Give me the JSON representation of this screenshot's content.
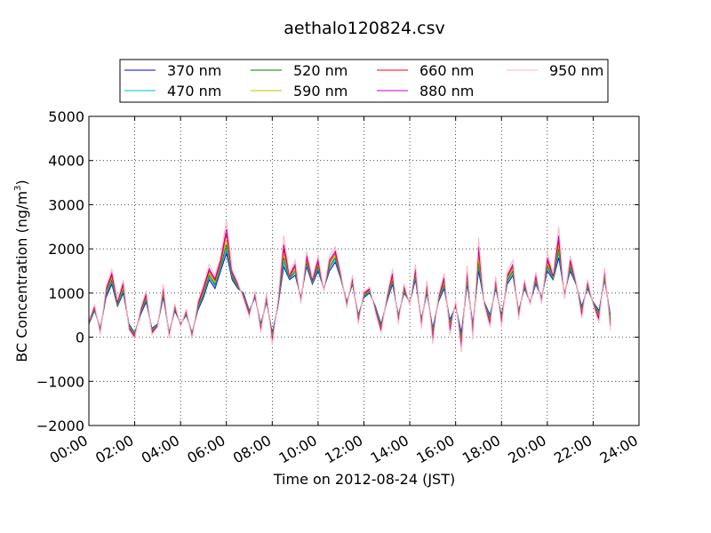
{
  "chart_data": {
    "type": "line",
    "title": "aethalo120824.csv",
    "xlabel": "Time on 2012-08-24 (JST)",
    "ylabel_prefix": "BC Concentration (ng/m",
    "ylabel_sup": "3",
    "ylabel_suffix": ")",
    "xlim": [
      0,
      24
    ],
    "ylim": [
      -2000,
      5000
    ],
    "x_tick_values": [
      0,
      2,
      4,
      6,
      8,
      10,
      12,
      14,
      16,
      18,
      20,
      22,
      24
    ],
    "x_tick_labels": [
      "00:00",
      "02:00",
      "04:00",
      "06:00",
      "08:00",
      "10:00",
      "12:00",
      "14:00",
      "16:00",
      "18:00",
      "20:00",
      "22:00",
      "24:00"
    ],
    "y_tick_values": [
      -2000,
      -1000,
      0,
      1000,
      2000,
      3000,
      4000,
      5000
    ],
    "y_tick_labels": [
      "−2000",
      "−1000",
      "0",
      "1000",
      "2000",
      "3000",
      "4000",
      "5000"
    ],
    "grid": true,
    "legend_position": "top",
    "x": [
      0.0,
      0.25,
      0.5,
      0.75,
      1.0,
      1.25,
      1.5,
      1.75,
      2.0,
      2.25,
      2.5,
      2.75,
      3.0,
      3.25,
      3.5,
      3.75,
      4.0,
      4.25,
      4.5,
      4.75,
      5.0,
      5.25,
      5.5,
      5.75,
      6.0,
      6.25,
      6.5,
      6.75,
      7.0,
      7.25,
      7.5,
      7.75,
      8.0,
      8.25,
      8.5,
      8.75,
      9.0,
      9.25,
      9.5,
      9.75,
      10.0,
      10.25,
      10.5,
      10.75,
      11.0,
      11.25,
      11.5,
      11.75,
      12.0,
      12.25,
      12.5,
      12.75,
      13.0,
      13.25,
      13.5,
      13.75,
      14.0,
      14.25,
      14.5,
      14.75,
      15.0,
      15.25,
      15.5,
      15.75,
      16.0,
      16.25,
      16.5,
      16.75,
      17.0,
      17.25,
      17.5,
      17.75,
      18.0,
      18.25,
      18.5,
      18.75,
      19.0,
      19.25,
      19.5,
      19.75,
      20.0,
      20.25,
      20.5,
      20.75,
      21.0,
      21.25,
      21.5,
      21.75,
      22.0,
      22.25,
      22.5,
      22.75
    ],
    "series": [
      {
        "name": "370 nm",
        "color": "#0000ff",
        "values": [
          300,
          600,
          200,
          900,
          1200,
          700,
          1000,
          300,
          100,
          500,
          800,
          200,
          300,
          900,
          100,
          600,
          300,
          500,
          100,
          600,
          900,
          1300,
          1100,
          1500,
          1900,
          1300,
          1100,
          1000,
          600,
          900,
          300,
          800,
          100,
          700,
          1600,
          1300,
          1400,
          900,
          1600,
          1200,
          1500,
          1100,
          1500,
          1700,
          1300,
          800,
          1200,
          500,
          900,
          1000,
          700,
          300,
          800,
          1200,
          500,
          1000,
          800,
          1300,
          400,
          1000,
          200,
          800,
          1100,
          400,
          700,
          100,
          1200,
          300,
          1500,
          800,
          500,
          1100,
          500,
          1200,
          1400,
          600,
          1100,
          800,
          1200,
          900,
          1500,
          1300,
          1800,
          1000,
          1500,
          1200,
          700,
          1100,
          800,
          600,
          1300,
          500
        ]
      },
      {
        "name": "470 nm",
        "color": "#00bfbf",
        "values": [
          320,
          620,
          180,
          950,
          1250,
          720,
          1050,
          280,
          90,
          520,
          850,
          180,
          290,
          950,
          90,
          640,
          290,
          520,
          80,
          630,
          950,
          1350,
          1150,
          1550,
          2000,
          1350,
          1120,
          980,
          580,
          930,
          270,
          830,
          60,
          720,
          1700,
          1320,
          1450,
          880,
          1650,
          1220,
          1550,
          1100,
          1550,
          1750,
          1320,
          780,
          1230,
          470,
          920,
          1020,
          680,
          270,
          820,
          1250,
          470,
          1030,
          790,
          1350,
          370,
          1040,
          150,
          820,
          1150,
          350,
          720,
          20,
          1260,
          250,
          1600,
          790,
          460,
          1140,
          460,
          1240,
          1450,
          570,
          1130,
          790,
          1240,
          880,
          1560,
          1320,
          1900,
          980,
          1550,
          1210,
          660,
          1130,
          790,
          560,
          1340,
          450
        ]
      },
      {
        "name": "520 nm",
        "color": "#008000",
        "values": [
          330,
          640,
          160,
          980,
          1300,
          740,
          1090,
          260,
          70,
          540,
          880,
          160,
          280,
          990,
          70,
          660,
          280,
          540,
          60,
          660,
          990,
          1400,
          1190,
          1600,
          2100,
          1380,
          1140,
          960,
          560,
          950,
          240,
          860,
          20,
          740,
          1800,
          1340,
          1500,
          860,
          1700,
          1240,
          1600,
          1090,
          1600,
          1800,
          1340,
          760,
          1260,
          440,
          940,
          1040,
          660,
          240,
          840,
          1300,
          440,
          1060,
          780,
          1400,
          340,
          1080,
          100,
          840,
          1200,
          300,
          740,
          -40,
          1320,
          200,
          1700,
          780,
          420,
          1180,
          420,
          1280,
          1500,
          540,
          1160,
          780,
          1280,
          860,
          1620,
          1340,
          2000,
          960,
          1600,
          1220,
          620,
          1160,
          780,
          520,
          1380,
          400
        ]
      },
      {
        "name": "590 nm",
        "color": "#bfbf00",
        "values": [
          340,
          660,
          140,
          1010,
          1350,
          760,
          1130,
          240,
          50,
          560,
          910,
          140,
          270,
          1030,
          50,
          680,
          270,
          560,
          40,
          690,
          1030,
          1450,
          1230,
          1650,
          2200,
          1410,
          1160,
          940,
          540,
          970,
          210,
          890,
          -20,
          760,
          1900,
          1360,
          1550,
          840,
          1750,
          1260,
          1650,
          1080,
          1650,
          1850,
          1360,
          740,
          1290,
          410,
          960,
          1060,
          640,
          210,
          860,
          1350,
          410,
          1090,
          770,
          1450,
          310,
          1120,
          50,
          860,
          1250,
          250,
          760,
          -100,
          1380,
          150,
          1800,
          770,
          380,
          1220,
          380,
          1320,
          1550,
          510,
          1190,
          770,
          1320,
          840,
          1680,
          1360,
          2100,
          940,
          1650,
          1230,
          580,
          1190,
          770,
          480,
          1420,
          350
        ]
      },
      {
        "name": "660 nm",
        "color": "#ff0000",
        "values": [
          350,
          680,
          120,
          1050,
          1400,
          780,
          1180,
          220,
          30,
          580,
          950,
          120,
          260,
          1080,
          30,
          700,
          260,
          580,
          20,
          720,
          1080,
          1500,
          1280,
          1700,
          2350,
          1440,
          1180,
          920,
          520,
          990,
          180,
          920,
          -60,
          780,
          2000,
          1380,
          1600,
          820,
          1800,
          1280,
          1700,
          1070,
          1700,
          1900,
          1380,
          720,
          1320,
          380,
          980,
          1080,
          620,
          180,
          880,
          1400,
          380,
          1120,
          760,
          1500,
          280,
          1160,
          0,
          880,
          1300,
          200,
          780,
          -160,
          1440,
          100,
          1950,
          760,
          340,
          1260,
          340,
          1360,
          1600,
          480,
          1220,
          760,
          1360,
          820,
          1740,
          1380,
          2200,
          920,
          1700,
          1240,
          540,
          1220,
          760,
          440,
          1460,
          300
        ]
      },
      {
        "name": "880 nm",
        "color": "#bf00bf",
        "values": [
          360,
          700,
          100,
          1080,
          1450,
          800,
          1220,
          200,
          10,
          600,
          980,
          100,
          250,
          1120,
          10,
          720,
          250,
          600,
          0,
          750,
          1120,
          1550,
          1320,
          1750,
          2450,
          1470,
          1200,
          900,
          500,
          1010,
          150,
          950,
          -100,
          800,
          2100,
          1400,
          1650,
          800,
          1850,
          1300,
          1750,
          1060,
          1750,
          1950,
          1400,
          700,
          1350,
          350,
          1000,
          1100,
          600,
          150,
          900,
          1450,
          350,
          1150,
          750,
          1550,
          250,
          1200,
          -50,
          900,
          1350,
          150,
          800,
          -220,
          1500,
          50,
          2050,
          750,
          300,
          1300,
          300,
          1400,
          1650,
          450,
          1250,
          750,
          1400,
          800,
          1800,
          1400,
          2300,
          900,
          1750,
          1250,
          500,
          1250,
          750,
          400,
          1500,
          250
        ]
      },
      {
        "name": "950 nm",
        "color": "#ffb6c1",
        "values": [
          380,
          740,
          60,
          1150,
          1550,
          840,
          1300,
          160,
          -30,
          640,
          1050,
          60,
          230,
          1200,
          -30,
          760,
          230,
          640,
          -40,
          800,
          1200,
          1650,
          1400,
          1850,
          2650,
          1530,
          1240,
          860,
          460,
          1050,
          90,
          1010,
          -180,
          840,
          2300,
          1440,
          1750,
          760,
          1950,
          1340,
          1850,
          1040,
          1850,
          2050,
          1440,
          660,
          1410,
          290,
          1040,
          1140,
          560,
          90,
          940,
          1550,
          290,
          1210,
          730,
          1650,
          190,
          1280,
          -150,
          940,
          1450,
          50,
          840,
          -340,
          1620,
          -50,
          2250,
          730,
          220,
          1380,
          220,
          1480,
          1750,
          390,
          1310,
          730,
          1480,
          760,
          1920,
          1440,
          2500,
          860,
          1850,
          1270,
          420,
          1310,
          730,
          320,
          1580,
          150
        ]
      }
    ]
  }
}
